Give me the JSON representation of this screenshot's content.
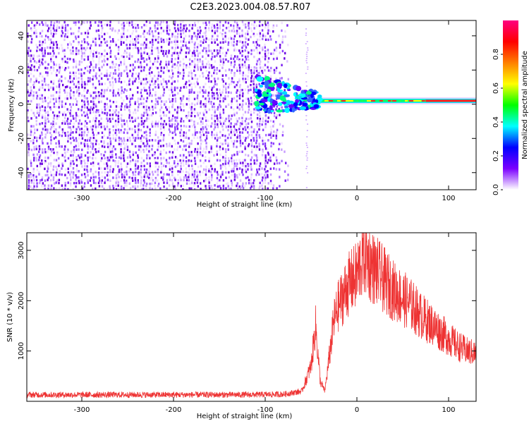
{
  "title": "C2E3.2023.004.08.57.R07",
  "chart_data": [
    {
      "type": "heatmap",
      "xlabel": "Height of straight line (km)",
      "ylabel": "Frequency (Hz)",
      "xlim": [
        -360,
        130
      ],
      "ylim": [
        -50,
        49
      ],
      "x_ticks": [
        -300,
        -200,
        -100,
        0,
        100
      ],
      "y_ticks": [
        -40,
        -20,
        0,
        20,
        40
      ],
      "colorbar": {
        "label": "Normalized spectral amplitude",
        "range": [
          0,
          1
        ],
        "ticks": [
          0.0,
          0.2,
          0.4,
          0.6,
          0.8
        ],
        "tick_labels": [
          "0.0",
          "0.2",
          "0.4",
          "0.6",
          "0.8"
        ],
        "colors": [
          "#ffffff",
          "#7b00ff",
          "#0000ff",
          "#00ffff",
          "#00ff00",
          "#ffff00",
          "#ff7f00",
          "#ff0000",
          "#ff0080"
        ]
      },
      "features": [
        {
          "description": "broadband low-amplitude noise",
          "x_range": [
            -360,
            -80
          ],
          "y_range": [
            -50,
            49
          ],
          "amplitude": 0.15
        },
        {
          "description": "narrowband signal",
          "x_range": [
            -110,
            130
          ],
          "frequency_hz": 2,
          "amplitude": 0.9
        },
        {
          "description": "vertical artifact",
          "x": -55,
          "amplitude": 0.05
        }
      ]
    },
    {
      "type": "line",
      "xlabel": "Height of straight line (km)",
      "ylabel": "SNR (10 * v/v)",
      "xlim": [
        -360,
        130
      ],
      "ylim": [
        0,
        3350
      ],
      "x_ticks": [
        -300,
        -200,
        -100,
        0,
        100
      ],
      "y_ticks": [
        1000,
        2000,
        3000
      ],
      "color": "#ee3333",
      "series": [
        {
          "x": [
            -360,
            -300,
            -200,
            -120,
            -80,
            -60,
            -50,
            -45,
            -40,
            -35,
            -30,
            -25,
            -20,
            -15,
            -10,
            -5,
            0,
            5,
            10,
            15,
            20,
            25,
            30,
            40,
            50,
            60,
            70,
            80,
            90,
            100,
            110,
            120,
            130
          ],
          "values": [
            130,
            130,
            130,
            130,
            140,
            200,
            700,
            1500,
            400,
            200,
            900,
            1600,
            1900,
            2100,
            2300,
            2400,
            2500,
            2800,
            2900,
            2700,
            2600,
            2500,
            2400,
            2200,
            2050,
            1900,
            1700,
            1550,
            1400,
            1250,
            1100,
            1000,
            950
          ]
        }
      ]
    }
  ]
}
